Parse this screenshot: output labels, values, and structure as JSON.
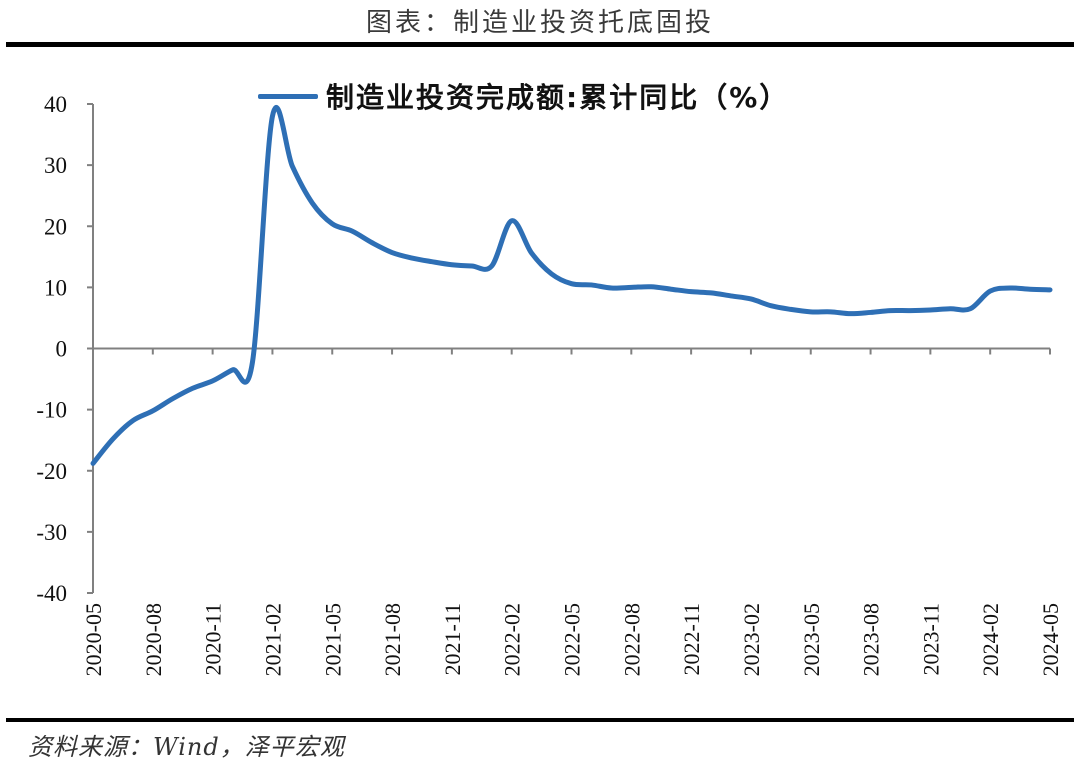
{
  "figure": {
    "title": "图表：制造业投资托底固投",
    "source": "资料来源：Wind，泽平宏观"
  },
  "colors": {
    "line": "#2e6fb5",
    "axis": "#808080",
    "text": "#111111"
  },
  "chart_data": {
    "type": "line",
    "title": "",
    "xlabel": "",
    "ylabel": "",
    "ylim": [
      -40,
      40
    ],
    "yticks": [
      40,
      30,
      20,
      10,
      0,
      -10,
      -20,
      -30,
      -40
    ],
    "grid": false,
    "legend_position": "top",
    "x_tick_labels": [
      "2020-05",
      "2020-08",
      "2020-11",
      "2021-02",
      "2021-05",
      "2021-08",
      "2021-11",
      "2022-02",
      "2022-05",
      "2022-08",
      "2022-11",
      "2023-02",
      "2023-05",
      "2023-08",
      "2023-11",
      "2024-02",
      "2024-05"
    ],
    "x": [
      "2020-05",
      "2020-06",
      "2020-07",
      "2020-08",
      "2020-09",
      "2020-10",
      "2020-11",
      "2020-12",
      "2021-01",
      "2021-02",
      "2021-03",
      "2021-04",
      "2021-05",
      "2021-06",
      "2021-07",
      "2021-08",
      "2021-09",
      "2021-10",
      "2021-11",
      "2021-12",
      "2022-01",
      "2022-02",
      "2022-03",
      "2022-04",
      "2022-05",
      "2022-06",
      "2022-07",
      "2022-08",
      "2022-09",
      "2022-10",
      "2022-11",
      "2022-12",
      "2023-01",
      "2023-02",
      "2023-03",
      "2023-04",
      "2023-05",
      "2023-06",
      "2023-07",
      "2023-08",
      "2023-09",
      "2023-10",
      "2023-11",
      "2023-12",
      "2024-01",
      "2024-02",
      "2024-03",
      "2024-04",
      "2024-05"
    ],
    "series": [
      {
        "name": "制造业投资完成额:累计同比（%）",
        "values": [
          -18.8,
          -14.8,
          -11.8,
          -10.2,
          -8.2,
          -6.5,
          -5.3,
          -3.5,
          -2.2,
          38.0,
          29.8,
          23.8,
          20.4,
          19.2,
          17.3,
          15.7,
          14.8,
          14.2,
          13.7,
          13.5,
          13.5,
          20.9,
          15.6,
          12.2,
          10.6,
          10.4,
          9.9,
          10.0,
          10.1,
          9.7,
          9.3,
          9.1,
          8.6,
          8.1,
          7.0,
          6.4,
          6.0,
          6.0,
          5.7,
          5.9,
          6.2,
          6.2,
          6.3,
          6.5,
          6.5,
          9.4,
          9.9,
          9.7,
          9.6
        ]
      }
    ]
  },
  "legend": {
    "label": "制造业投资完成额:累计同比（%）"
  }
}
